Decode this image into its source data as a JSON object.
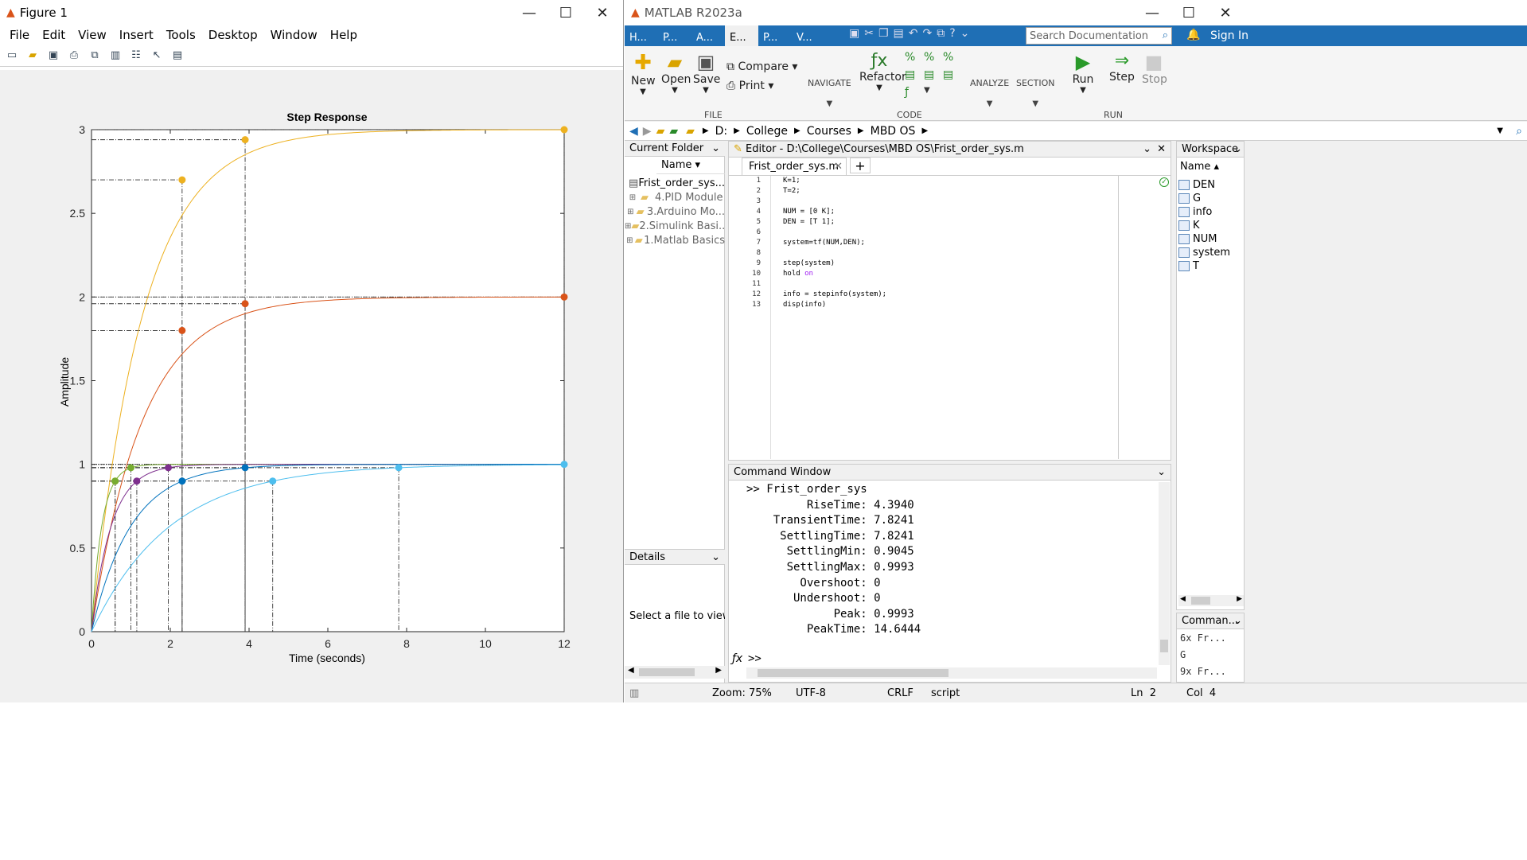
{
  "figure": {
    "title": "Figure 1",
    "menu": [
      "File",
      "Edit",
      "View",
      "Insert",
      "Tools",
      "Desktop",
      "Window",
      "Help"
    ]
  },
  "chart_data": {
    "type": "line",
    "title": "Step Response",
    "xlabel": "Time (seconds)",
    "ylabel": "Amplitude",
    "xlim": [
      0,
      12
    ],
    "ylim": [
      0,
      3
    ],
    "xticks": [
      "0",
      "2",
      "4",
      "6",
      "8",
      "10",
      "12"
    ],
    "yticks": [
      "0",
      "0.5",
      "1",
      "1.5",
      "2",
      "2.5",
      "3"
    ],
    "grid": false,
    "series": [
      {
        "color": "#EDB120",
        "gain": 3,
        "tau": 1.3,
        "points": [
          [
            0.6,
            0.9
          ],
          [
            2.3,
            2.7
          ],
          [
            3.9,
            2.94
          ],
          [
            12,
            3.0
          ]
        ]
      },
      {
        "color": "#D95319",
        "gain": 2,
        "tau": 1.3,
        "points": [
          [
            2.3,
            1.8
          ],
          [
            3.9,
            1.96
          ],
          [
            12,
            2.0
          ]
        ]
      },
      {
        "color": "#77AC30",
        "gain": 1,
        "tau": 0.26,
        "points": [
          [
            0.6,
            0.9
          ],
          [
            1.0,
            0.98
          ]
        ]
      },
      {
        "color": "#7E2F8E",
        "gain": 1,
        "tau": 0.5,
        "points": [
          [
            1.15,
            0.9
          ],
          [
            1.95,
            0.98
          ]
        ]
      },
      {
        "color": "#0072BD",
        "gain": 1,
        "tau": 1.0,
        "points": [
          [
            2.3,
            0.9
          ],
          [
            3.9,
            0.98
          ]
        ]
      },
      {
        "color": "#4DBEEE",
        "gain": 1,
        "tau": 2.0,
        "points": [
          [
            4.6,
            0.9
          ],
          [
            7.8,
            0.98
          ],
          [
            12,
            1.0
          ]
        ]
      }
    ]
  },
  "matlab": {
    "title": "MATLAB R2023a",
    "tabs": [
      "H...",
      "P...",
      "A...",
      "E...",
      "P...",
      "V..."
    ],
    "search_placeholder": "Search Documentation",
    "sign_in": "Sign In",
    "ribbon": {
      "new": "New",
      "open": "Open",
      "save": "Save",
      "compare": "Compare",
      "print": "Print",
      "navigate": "NAVIGATE",
      "refactor": "Refactor",
      "analyze": "ANALYZE",
      "section": "SECTION",
      "run": "Run",
      "step": "Step",
      "stop": "Stop",
      "sec_file": "FILE",
      "sec_code": "CODE",
      "sec_run": "RUN"
    },
    "path": [
      "D:",
      "College",
      "Courses",
      "MBD OS"
    ],
    "current_folder": {
      "title": "Current Folder",
      "name_col": "Name",
      "items": [
        "Frist_order_sys...",
        "4.PID Module",
        "3.Arduino Mo...",
        "2.Simulink Basi...",
        "1.Matlab Basics"
      ]
    },
    "details": {
      "title": "Details",
      "text": "Select a file to view de"
    },
    "editor": {
      "title": "Editor - D:\\College\\Courses\\MBD OS\\Frist_order_sys.m",
      "tab": "Frist_order_sys.m",
      "lines": [
        "K=1;",
        "T=2;",
        "",
        "NUM = [0 K];",
        "DEN = [T 1];",
        "",
        "system=tf(NUM,DEN);",
        "",
        "step(system)",
        "hold on",
        "",
        "info = stepinfo(system);",
        "disp(info)"
      ]
    },
    "command_window": {
      "title": "Command Window",
      "lines": [
        ">> Frist_order_sys",
        "         RiseTime: 4.3940",
        "    TransientTime: 7.8241",
        "     SettlingTime: 7.8241",
        "      SettlingMin: 0.9045",
        "      SettlingMax: 0.9993",
        "        Overshoot: 0",
        "       Undershoot: 0",
        "             Peak: 0.9993",
        "         PeakTime: 14.6444"
      ],
      "prompt": ">>"
    },
    "workspace": {
      "title": "Workspace",
      "name_col": "Name",
      "items": [
        "DEN",
        "G",
        "info",
        "K",
        "NUM",
        "system",
        "T"
      ]
    },
    "history": {
      "title": "Comman...",
      "items": [
        "6x Fr...",
        "G",
        "9x Fr..."
      ]
    },
    "status": {
      "zoom": "Zoom: 75%",
      "encoding": "UTF-8",
      "eol": "CRLF",
      "type": "script",
      "ln": "Ln  2",
      "col": "Col  4"
    }
  }
}
